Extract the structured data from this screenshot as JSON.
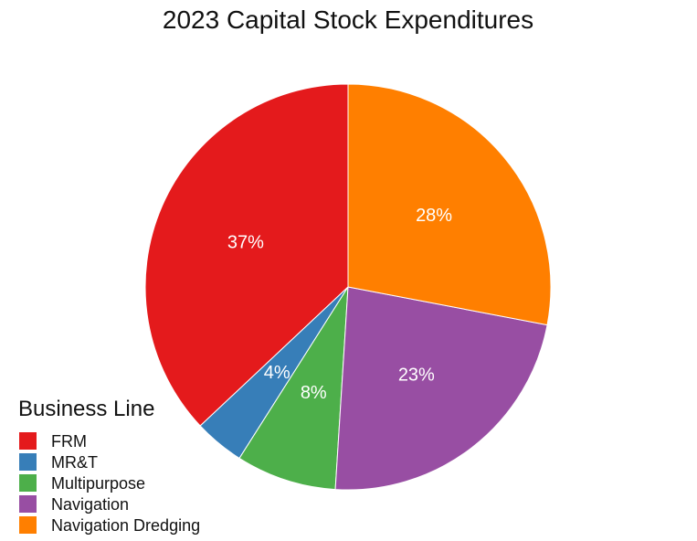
{
  "chart_data": {
    "type": "pie",
    "title": "2023 Capital Stock Expenditures",
    "legend_title": "Business Line",
    "legend_position": "bottom-left",
    "slices": [
      {
        "name": "FRM",
        "value": 37,
        "label": "37%",
        "color": "#E41A1C"
      },
      {
        "name": "MR&T",
        "value": 4,
        "label": "4%",
        "color": "#377EB8"
      },
      {
        "name": "Multipurpose",
        "value": 8,
        "label": "8%",
        "color": "#4DAF4A"
      },
      {
        "name": "Navigation",
        "value": 23,
        "label": "23%",
        "color": "#984EA3"
      },
      {
        "name": "Navigation Dredging",
        "value": 28,
        "label": "28%",
        "color": "#FF7F00"
      }
    ]
  }
}
